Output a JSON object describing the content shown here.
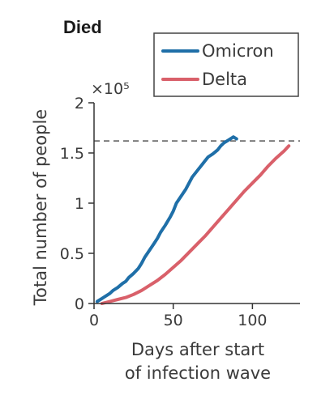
{
  "chart_data": {
    "type": "line",
    "title": "Died",
    "xlabel_lines": [
      "Days after start",
      "of infection wave"
    ],
    "ylabel": "Total number of people",
    "y_multiplier": "×10⁵",
    "xlim": [
      0,
      130
    ],
    "ylim": [
      0,
      2
    ],
    "x_ticks": [
      0,
      50,
      100
    ],
    "x_tick_labels": [
      "0",
      "50",
      "100"
    ],
    "y_ticks": [
      0,
      0.5,
      1,
      1.5,
      2
    ],
    "y_tick_labels": [
      "0",
      "0.5",
      "1",
      "1.5",
      "2"
    ],
    "reference_line": {
      "y": 1.62,
      "style": "dashed",
      "color": "#555555"
    },
    "legend": {
      "placement": "top-right",
      "boxed": true
    },
    "grid": false,
    "series": [
      {
        "name": "Omicron",
        "color": "#1f6fa8",
        "x": [
          2,
          5,
          8,
          10,
          12,
          15,
          18,
          20,
          22,
          25,
          28,
          30,
          32,
          35,
          38,
          40,
          42,
          45,
          48,
          50,
          52,
          55,
          58,
          60,
          62,
          65,
          68,
          70,
          72,
          75,
          78,
          80,
          82,
          85,
          88,
          90
        ],
        "y": [
          0.02,
          0.05,
          0.08,
          0.1,
          0.13,
          0.16,
          0.2,
          0.22,
          0.26,
          0.3,
          0.35,
          0.4,
          0.46,
          0.53,
          0.6,
          0.65,
          0.71,
          0.78,
          0.86,
          0.92,
          1.0,
          1.07,
          1.14,
          1.2,
          1.26,
          1.32,
          1.38,
          1.42,
          1.46,
          1.49,
          1.53,
          1.57,
          1.6,
          1.63,
          1.66,
          1.64
        ]
      },
      {
        "name": "Delta",
        "color": "#d9606a",
        "x": [
          5,
          10,
          15,
          20,
          25,
          30,
          35,
          40,
          45,
          50,
          55,
          60,
          65,
          70,
          75,
          80,
          85,
          90,
          95,
          100,
          105,
          110,
          115,
          120,
          123
        ],
        "y": [
          0.0,
          0.02,
          0.04,
          0.06,
          0.09,
          0.13,
          0.18,
          0.23,
          0.29,
          0.36,
          0.43,
          0.51,
          0.59,
          0.67,
          0.76,
          0.85,
          0.94,
          1.03,
          1.12,
          1.2,
          1.28,
          1.37,
          1.45,
          1.52,
          1.57
        ]
      }
    ]
  }
}
